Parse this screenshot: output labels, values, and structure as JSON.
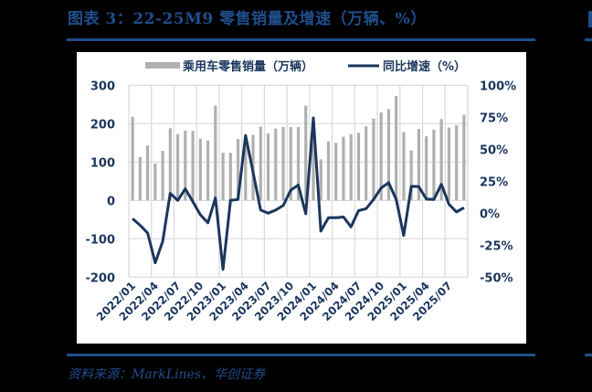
{
  "header": {
    "title": "图表 3：22-25M9 零售销量及增速（万辆、%）"
  },
  "footer": {
    "source": "资料来源：MarkLines、华创证券"
  },
  "colors": {
    "brand": "#1f4e8c",
    "bar": "#b0b0b0",
    "line": "#1b365d",
    "axis_text": "#1b365d",
    "grid": "#d9d9d9"
  },
  "chart_data": {
    "type": "bar+line",
    "title": "22-25M9 零售销量及增速（万辆、%）",
    "legend": [
      "乘用车零售销量（万辆）",
      "同比增速（%）"
    ],
    "legend_position": "top",
    "grid": true,
    "x_tick_labels": [
      "2022/01",
      "2022/04",
      "2022/07",
      "2022/10",
      "2023/01",
      "2023/04",
      "2023/07",
      "2023/10",
      "2024/01",
      "2024/04",
      "2024/07",
      "2024/10",
      "2025/01",
      "2025/04",
      "2025/07"
    ],
    "y_left": {
      "label": "乘用车零售销量（万辆）",
      "range": [
        -200,
        300
      ],
      "ticks": [
        300,
        200,
        100,
        0,
        -100,
        -200
      ]
    },
    "y_right": {
      "label": "同比增速（%）",
      "range": [
        -50,
        100
      ],
      "ticks": [
        "100%",
        "75%",
        "50%",
        "25%",
        "0%",
        "-25%",
        "-50%"
      ]
    },
    "categories": [
      "2022/01",
      "2022/02",
      "2022/03",
      "2022/04",
      "2022/05",
      "2022/06",
      "2022/07",
      "2022/08",
      "2022/09",
      "2022/10",
      "2022/11",
      "2022/12",
      "2023/01",
      "2023/02",
      "2023/03",
      "2023/04",
      "2023/05",
      "2023/06",
      "2023/07",
      "2023/08",
      "2023/09",
      "2023/10",
      "2023/11",
      "2023/12",
      "2024/01",
      "2024/02",
      "2024/03",
      "2024/04",
      "2024/05",
      "2024/06",
      "2024/07",
      "2024/08",
      "2024/09",
      "2024/10",
      "2024/11",
      "2024/12",
      "2025/01",
      "2025/02",
      "2025/03",
      "2025/04",
      "2025/05",
      "2025/06",
      "2025/07",
      "2025/08",
      "2025/09"
    ],
    "series": [
      {
        "name": "乘用车零售销量（万辆）",
        "type": "bar",
        "axis": "left",
        "values": [
          218,
          113,
          143,
          96,
          129,
          188,
          173,
          182,
          181,
          161,
          156,
          247,
          124,
          124,
          160,
          163,
          171,
          192,
          174,
          187,
          191,
          191,
          191,
          247,
          205,
          107,
          154,
          150,
          166,
          172,
          176,
          193,
          213,
          229,
          238,
          272,
          178,
          130,
          186,
          167,
          184,
          212,
          190,
          196,
          223
        ]
      },
      {
        "name": "同比增速（%）",
        "type": "line",
        "axis": "right",
        "values": [
          -4.3,
          -9.5,
          -15.5,
          -38.8,
          -22,
          15.5,
          10,
          19,
          9,
          -1.2,
          -7.6,
          12,
          -44,
          10,
          10.7,
          60.7,
          32,
          2.4,
          0,
          2.4,
          6,
          18,
          22,
          -0.5,
          74.5,
          -14,
          -3.6,
          -3.6,
          -3,
          -10.7,
          2,
          3.5,
          10.7,
          19.7,
          23.8,
          10.7,
          -17.4,
          21,
          20.7,
          11,
          10.7,
          22.6,
          7,
          1,
          4.3
        ]
      }
    ]
  }
}
